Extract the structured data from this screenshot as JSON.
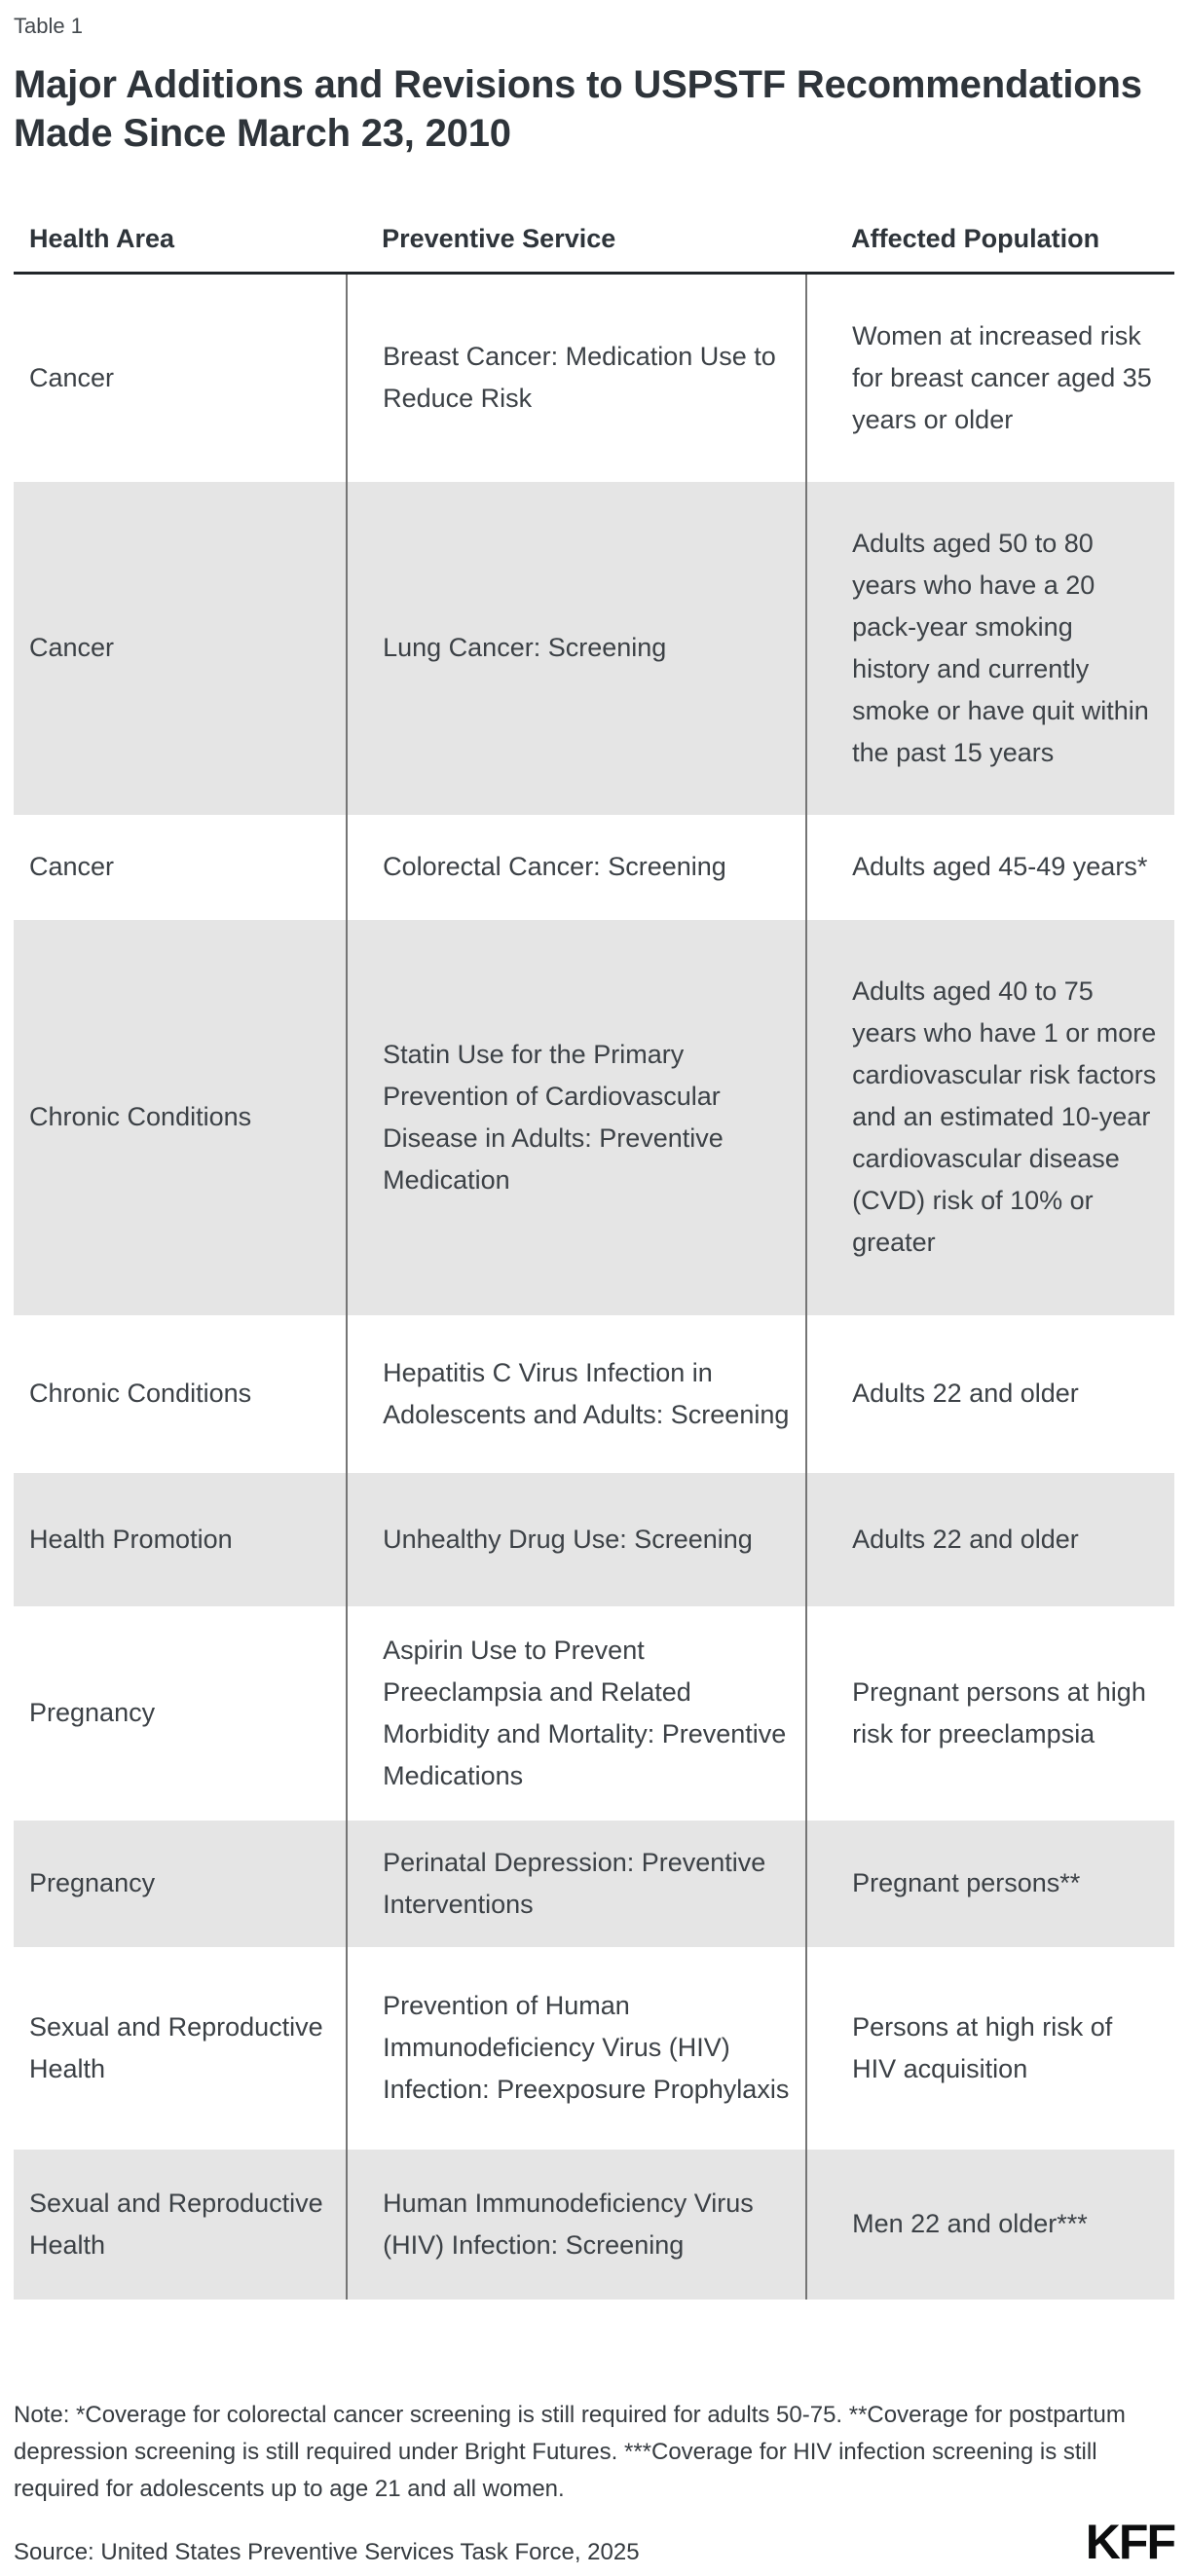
{
  "page": {
    "table_label": "Table 1",
    "title": "Major Additions and Revisions to USPSTF Recommendations Made Since March 23, 2010",
    "note": "Note: *Coverage for colorectal cancer screening is still required for adults 50-75. **Coverage for postpartum depression screening is still required under Bright Futures. ***Coverage for HIV infection screening is still required for adolescents up to age 21 and all women.",
    "source": "Source: United States Preventive Services Task Force, 2025",
    "logo": "KFF"
  },
  "table": {
    "columns": [
      "Health Area",
      "Preventive Service",
      "Affected Population"
    ],
    "rows": [
      {
        "health_area": "Cancer",
        "service": "Breast Cancer: Medication Use to Reduce Risk",
        "population": "Women at increased risk for breast cancer aged 35 years or older"
      },
      {
        "health_area": "Cancer",
        "service": "Lung Cancer: Screening",
        "population": "Adults aged 50 to 80 years who have a 20 pack-year smoking history and currently smoke or have quit within the past 15 years"
      },
      {
        "health_area": "Cancer",
        "service": "Colorectal Cancer: Screening",
        "population": "Adults aged 45-49 years*"
      },
      {
        "health_area": "Chronic Conditions",
        "service": "Statin Use for the Primary Prevention of Cardiovascular Disease in Adults: Preventive Medication",
        "population": "Adults aged 40 to 75 years who have 1 or more cardiovascular risk factors and an estimated 10-year cardiovascular disease (CVD) risk of 10% or greater"
      },
      {
        "health_area": "Chronic Conditions",
        "service": "Hepatitis C Virus Infection in Adolescents and Adults: Screening",
        "population": "Adults 22 and older"
      },
      {
        "health_area": "Health Promotion",
        "service": "Unhealthy Drug Use: Screening",
        "population": "Adults 22 and older"
      },
      {
        "health_area": "Pregnancy",
        "service": "Aspirin Use to Prevent Preeclampsia and Related Morbidity and Mortality: Preventive Medications",
        "population": "Pregnant persons at high risk for preeclampsia"
      },
      {
        "health_area": "Pregnancy",
        "service": "Perinatal Depression: Preventive Interventions",
        "population": "Pregnant persons**"
      },
      {
        "health_area": "Sexual and Reproductive Health",
        "service": "Prevention of Human Immunodeficiency Virus (HIV) Infection: Preexposure Prophylaxis",
        "population": "Persons at high risk of HIV acquisition"
      },
      {
        "health_area": "Sexual and Reproductive Health",
        "service": "Human Immunodeficiency Virus (HIV) Infection: Screening",
        "population": "Men 22 and older***"
      }
    ]
  },
  "colors": {
    "text_dark": "#2e343a",
    "text_body": "#3c4146",
    "row_alt": "#e5e5e5",
    "header_rule": "#22262a",
    "column_divider": "#757575",
    "logo": "#0c0d0e"
  }
}
